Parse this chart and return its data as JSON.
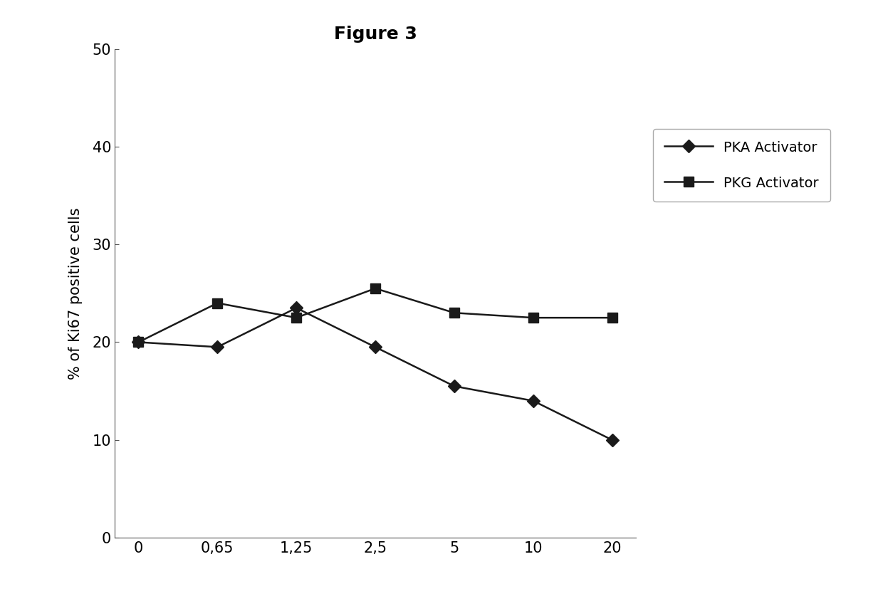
{
  "title": "Figure 3",
  "ylabel": "% of Ki67 positive cells",
  "x_labels": [
    "0",
    "0,65",
    "1,25",
    "2,5",
    "5",
    "10",
    "20"
  ],
  "x_positions": [
    0,
    1,
    2,
    3,
    4,
    5,
    6
  ],
  "pka_values": [
    20.0,
    19.5,
    23.5,
    19.5,
    15.5,
    14.0,
    10.0
  ],
  "pkg_values": [
    20.0,
    24.0,
    22.5,
    25.5,
    23.0,
    22.5,
    22.5
  ],
  "pka_label": "PKA Activator",
  "pkg_label": "PKG Activator",
  "line_color": "#1a1a1a",
  "ylim": [
    0,
    50
  ],
  "yticks": [
    0,
    10,
    20,
    30,
    40,
    50
  ],
  "background_color": "#ffffff",
  "title_fontsize": 18,
  "label_fontsize": 15,
  "tick_fontsize": 15,
  "legend_fontsize": 14
}
